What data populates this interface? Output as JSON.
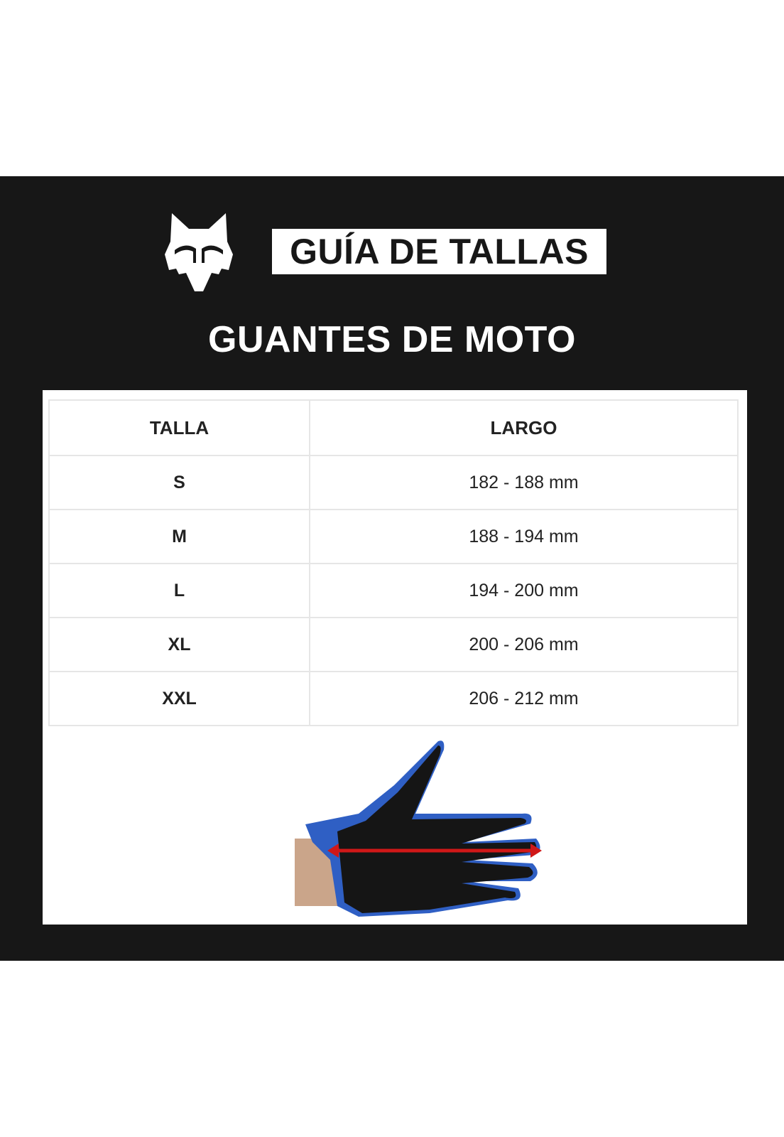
{
  "header": {
    "logo": "fox-head-logo",
    "title": "GUÍA DE TALLAS",
    "subtitle": "GUANTES DE MOTO"
  },
  "table": {
    "columns": [
      "TALLA",
      "LARGO"
    ],
    "rows": [
      {
        "size": "S",
        "length": "182 - 188 mm"
      },
      {
        "size": "M",
        "length": "188 - 194 mm"
      },
      {
        "size": "L",
        "length": "194 - 200 mm"
      },
      {
        "size": "XL",
        "length": "200 - 206 mm"
      },
      {
        "size": "XXL",
        "length": "206 - 212 mm"
      }
    ]
  },
  "image": {
    "subject": "glove-measurement",
    "arrow_color": "#d01818",
    "glove_accent": "#2f5fc4"
  },
  "colors": {
    "background": "#171717",
    "panel": "#ffffff"
  }
}
